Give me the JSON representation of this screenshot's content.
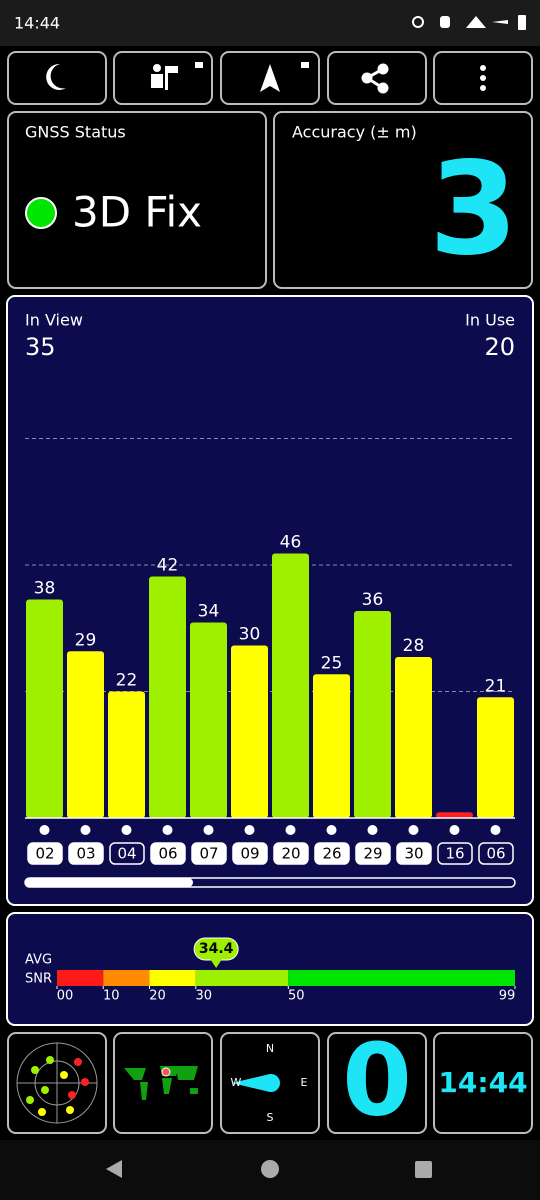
{
  "status_bar": {
    "time": "14:44"
  },
  "gnss_status": {
    "title": "GNSS Status",
    "fix": "3D Fix"
  },
  "accuracy": {
    "title": "Accuracy (± m)",
    "value": 3
  },
  "satellites": {
    "in_view_label": "In View",
    "in_view": 35,
    "in_use_label": "In Use",
    "in_use": 20
  },
  "chart_data": {
    "type": "bar",
    "categories": [
      "02",
      "03",
      "04",
      "06",
      "07",
      "09",
      "20",
      "26",
      "29",
      "30",
      "16",
      "06"
    ],
    "values": [
      38,
      29,
      22,
      42,
      34,
      30,
      46,
      25,
      36,
      28,
      1,
      21
    ],
    "value_labels": [
      "38",
      "29",
      "22",
      "42",
      "34",
      "30",
      "46",
      "25",
      "36",
      "28",
      null,
      "21"
    ],
    "colors": [
      "#9ef000",
      "#ffff00",
      "#ffff00",
      "#9ef000",
      "#9ef000",
      "#ffff00",
      "#9ef000",
      "#ffff00",
      "#9ef000",
      "#ffff00",
      "#ff2020",
      "#ffff00"
    ],
    "in_use": [
      true,
      true,
      false,
      true,
      true,
      true,
      true,
      true,
      true,
      true,
      false,
      false
    ],
    "ylim": [
      0,
      72
    ],
    "grid_lines": [
      22,
      44,
      66
    ]
  },
  "snr": {
    "avg_label": "AVG",
    "snr_label": "SNR",
    "avg": 34.4,
    "ticks": [
      {
        "value": 0,
        "label": "00"
      },
      10,
      20,
      30,
      50,
      99
    ],
    "colors": [
      "#ff1a1a",
      "#ff8c00",
      "#ffff00",
      "#9ef000",
      "#00e600"
    ]
  },
  "bottom": {
    "compass": {
      "n": "N",
      "e": "E",
      "s": "S",
      "w": "W"
    },
    "speed": 0,
    "clock": "14:44"
  }
}
